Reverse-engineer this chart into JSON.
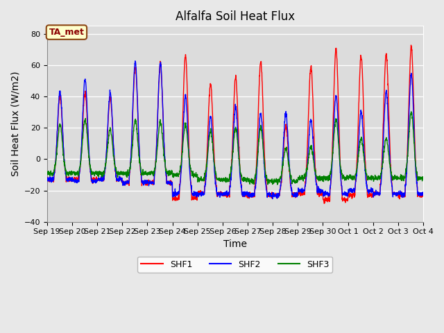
{
  "title": "Alfalfa Soil Heat Flux",
  "xlabel": "Time",
  "ylabel": "Soil Heat Flux (W/m2)",
  "ylim": [
    -40,
    85
  ],
  "yticks": [
    -40,
    -20,
    0,
    20,
    40,
    60,
    80
  ],
  "annotation_text": "TA_met",
  "legend_labels": [
    "SHF1",
    "SHF2",
    "SHF3"
  ],
  "colors": [
    "red",
    "blue",
    "green"
  ],
  "bg_color": "#e8e8e8",
  "plot_bg_color": "#dcdcdc",
  "title_fontsize": 12,
  "axis_fontsize": 10,
  "tick_fontsize": 8,
  "xtick_labels": [
    "Sep 19",
    "Sep 20",
    "Sep 21",
    "Sep 22",
    "Sep 23",
    "Sep 24",
    "Sep 25",
    "Sep 26",
    "Sep 27",
    "Sep 28",
    "Sep 29",
    "Sep 30",
    "Oct 1",
    "Oct 2",
    "Oct 3",
    "Oct 4"
  ],
  "n_days": 15,
  "pts_per_day": 144,
  "shf1_peaks": [
    40,
    42,
    39,
    59,
    61,
    66,
    48,
    52,
    62,
    21,
    59,
    70,
    66,
    67,
    72
  ],
  "shf1_nights": [
    -13,
    -13,
    -13,
    -15,
    -15,
    -25,
    -22,
    -23,
    -23,
    -23,
    -22,
    -26,
    -23,
    -22,
    -23
  ],
  "shf2_peaks": [
    43,
    51,
    42,
    62,
    61,
    40,
    27,
    33,
    29,
    29,
    25,
    41,
    30,
    43,
    54
  ],
  "shf2_nights": [
    -13,
    -14,
    -13,
    -15,
    -15,
    -22,
    -22,
    -22,
    -23,
    -23,
    -20,
    -22,
    -20,
    -22,
    -22
  ],
  "shf3_peaks": [
    22,
    25,
    19,
    25,
    24,
    22,
    18,
    20,
    20,
    7,
    8,
    25,
    13,
    13,
    30
  ],
  "shf3_nights": [
    -9,
    -9,
    -9,
    -9,
    -9,
    -10,
    -13,
    -13,
    -14,
    -14,
    -12,
    -12,
    -12,
    -12,
    -12
  ]
}
